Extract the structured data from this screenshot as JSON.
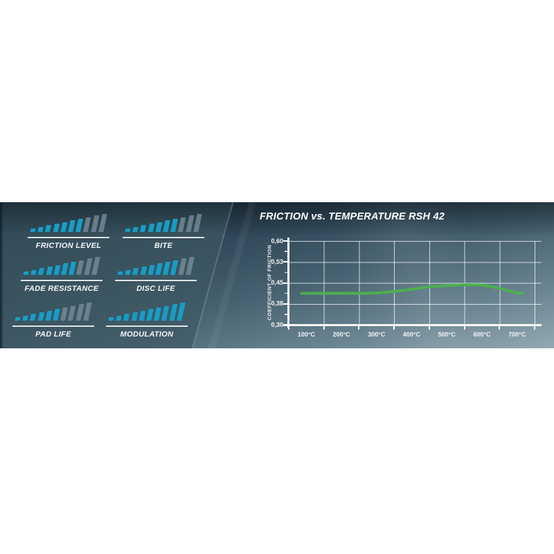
{
  "page": {
    "background": "#ffffff"
  },
  "banner": {
    "colors": {
      "panel_teal_dark": "#304955",
      "panel_teal_light": "#547080",
      "backdrop_dark": "#1e2d3a",
      "backdrop_light": "#93a9b2",
      "bar_active": "#179dc6",
      "bar_inactive": "#7a929e",
      "text": "#f4f7f8",
      "grid": "#ffffff"
    },
    "ratings": {
      "max": 10,
      "items": [
        {
          "label": "FRICTION LEVEL",
          "value": 7
        },
        {
          "label": "BITE",
          "value": 7
        },
        {
          "label": "FADE RESISTANCE",
          "value": 7
        },
        {
          "label": "DISC LIFE",
          "value": 8
        },
        {
          "label": "PAD LIFE",
          "value": 6
        },
        {
          "label": "MODULATION",
          "value": 10
        }
      ]
    }
  },
  "chart_data": {
    "type": "line",
    "title": "FRICTION vs. TEMPERATURE RSH 42",
    "xlabel": "",
    "ylabel": "COEFFICIENT OF FRICTION",
    "x_unit": "°C",
    "x_tick_labels": [
      "100°C",
      "200°C",
      "300°C",
      "400°C",
      "500°C",
      "600°C",
      "700°C"
    ],
    "y_tick_labels": [
      "0,60",
      "0,53",
      "0,45",
      "0,38",
      "0,30"
    ],
    "y_tick_values": [
      0.6,
      0.53,
      0.45,
      0.38,
      0.3
    ],
    "ylim": [
      0.3,
      0.6
    ],
    "grid": true,
    "legend_position": "none",
    "line_color": "#4caf50",
    "series": [
      {
        "name": "RSH 42",
        "x": [
          100,
          150,
          200,
          250,
          300,
          350,
          400,
          450,
          500,
          550,
          600,
          650,
          700
        ],
        "y": [
          0.415,
          0.415,
          0.415,
          0.415,
          0.416,
          0.421,
          0.429,
          0.437,
          0.441,
          0.444,
          0.443,
          0.432,
          0.416
        ]
      }
    ]
  }
}
